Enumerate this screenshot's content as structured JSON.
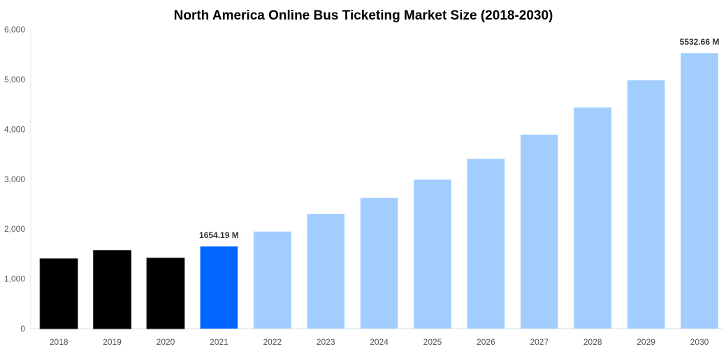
{
  "chart_data": {
    "type": "bar",
    "title": "North America Online Bus Ticketing Market Size (2018-2030)",
    "xlabel": "",
    "ylabel": "",
    "categories": [
      "2018",
      "2019",
      "2020",
      "2021",
      "2022",
      "2023",
      "2024",
      "2025",
      "2026",
      "2027",
      "2028",
      "2029",
      "2030"
    ],
    "values": [
      1405,
      1573,
      1419,
      1654.19,
      1952,
      2305,
      2627,
      2993,
      3410,
      3897,
      4442,
      4986,
      5532.66
    ],
    "bar_colors": [
      "#000000",
      "#000000",
      "#000000",
      "#0066ff",
      "#a2cdff",
      "#a2cdff",
      "#a2cdff",
      "#a2cdff",
      "#a2cdff",
      "#a2cdff",
      "#a2cdff",
      "#a2cdff",
      "#a2cdff"
    ],
    "data_labels": [
      {
        "category": "2021",
        "text": "1654.19 M"
      },
      {
        "category": "2030",
        "text": "5532.66 M"
      }
    ],
    "ylim": [
      0,
      6000
    ],
    "yticks": [
      "0",
      "1,000",
      "2,000",
      "3,000",
      "4,000",
      "5,000",
      "6,000"
    ],
    "grid": false,
    "legend": "none"
  }
}
